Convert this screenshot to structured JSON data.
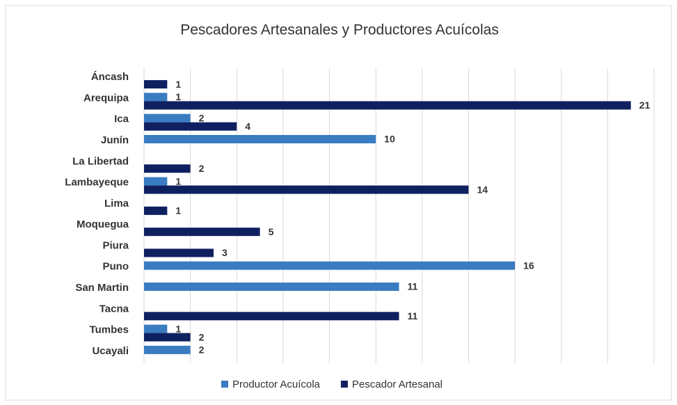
{
  "chart_data": {
    "type": "hbar",
    "title": "Pescadores Artesanales y Productores Acuícolas",
    "categories": [
      "Áncash",
      "Arequipa",
      "Ica",
      "Junín",
      "La Libertad",
      "Lambayeque",
      "Lima",
      "Moquegua",
      "Piura",
      "Puno",
      "San Martin",
      "Tacna",
      "Tumbes",
      "Ucayali"
    ],
    "series": [
      {
        "name": "Productor Acuícola",
        "color": "#3a7cc1",
        "values": [
          null,
          1,
          2,
          10,
          null,
          1,
          null,
          null,
          null,
          16,
          11,
          null,
          1,
          2
        ]
      },
      {
        "name": "Pescador Artesanal",
        "color": "#0f2060",
        "values": [
          1,
          21,
          4,
          null,
          2,
          14,
          1,
          5,
          3,
          null,
          null,
          11,
          2,
          null
        ]
      }
    ],
    "xlim": [
      0,
      22
    ],
    "xticks": [
      0,
      2,
      4,
      6,
      8,
      10,
      12,
      14,
      16,
      18,
      20,
      22
    ],
    "grid": true,
    "legend": "bottom"
  }
}
